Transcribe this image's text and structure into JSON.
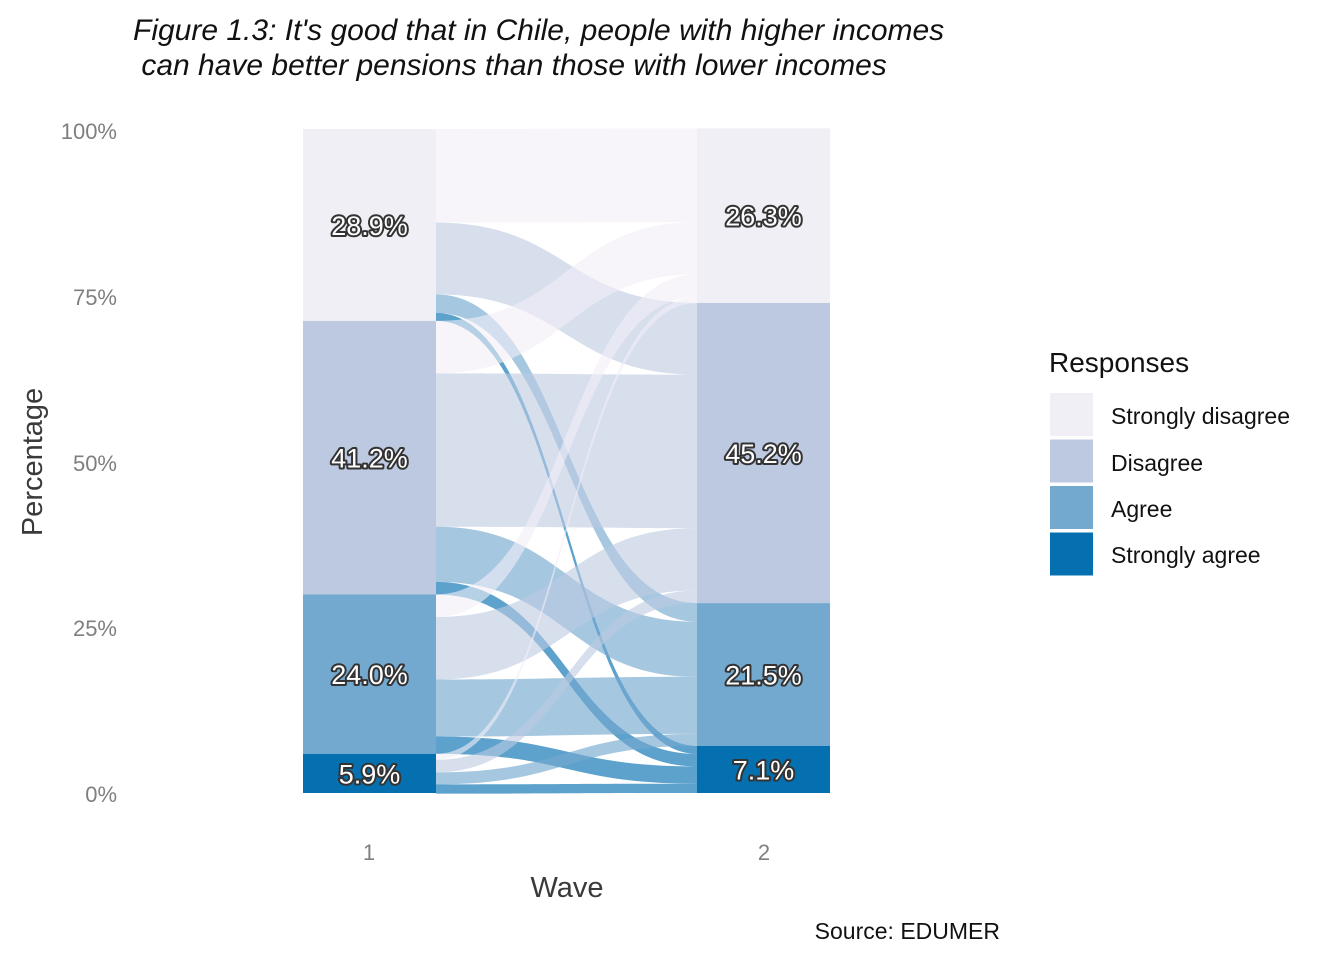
{
  "chart_data": {
    "type": "alluvial",
    "title_lines": [
      "Figure 1.3: It's good that in Chile, people with higher incomes",
      " can have better pensions than those with lower incomes"
    ],
    "xlabel": "Wave",
    "ylabel": "Percentage",
    "caption": "Source: EDUMER",
    "x_categories": [
      "1",
      "2"
    ],
    "y_ticks": [
      "0%",
      "25%",
      "50%",
      "75%",
      "100%"
    ],
    "ylim": [
      0,
      100
    ],
    "grid": false,
    "legend": {
      "title": "Responses",
      "position": "right",
      "items": [
        "Strongly disagree",
        "Disagree",
        "Agree",
        "Strongly agree"
      ]
    },
    "categories": [
      "Strongly disagree",
      "Disagree",
      "Agree",
      "Strongly agree"
    ],
    "colors": {
      "Strongly disagree": "#f1eff6",
      "Disagree": "#bdc9e1",
      "Agree": "#74a9cf",
      "Strongly agree": "#0570b0"
    },
    "waves": [
      {
        "wave": "1",
        "values": {
          "Strongly disagree": 28.9,
          "Disagree": 41.2,
          "Agree": 24.0,
          "Strongly agree": 5.9
        },
        "labels": {
          "Strongly disagree": "28.9%",
          "Disagree": "41.2%",
          "Agree": "24.0%",
          "Strongly agree": "5.9%"
        }
      },
      {
        "wave": "2",
        "values": {
          "Strongly disagree": 26.3,
          "Disagree": 45.2,
          "Agree": 21.5,
          "Strongly agree": 7.1
        },
        "labels": {
          "Strongly disagree": "26.3%",
          "Disagree": "45.2%",
          "Agree": "21.5%",
          "Strongly agree": "7.1%"
        }
      }
    ],
    "flows": [
      {
        "from": "Strongly disagree",
        "to": "Strongly disagree",
        "value": 14.1
      },
      {
        "from": "Strongly disagree",
        "to": "Disagree",
        "value": 10.8
      },
      {
        "from": "Strongly disagree",
        "to": "Agree",
        "value": 2.8
      },
      {
        "from": "Strongly disagree",
        "to": "Strongly agree",
        "value": 1.2
      },
      {
        "from": "Disagree",
        "to": "Strongly disagree",
        "value": 7.9
      },
      {
        "from": "Disagree",
        "to": "Disagree",
        "value": 23.1
      },
      {
        "from": "Disagree",
        "to": "Agree",
        "value": 8.3
      },
      {
        "from": "Disagree",
        "to": "Strongly agree",
        "value": 1.9
      },
      {
        "from": "Agree",
        "to": "Strongly disagree",
        "value": 3.4
      },
      {
        "from": "Agree",
        "to": "Disagree",
        "value": 9.4
      },
      {
        "from": "Agree",
        "to": "Agree",
        "value": 8.6
      },
      {
        "from": "Agree",
        "to": "Strongly agree",
        "value": 2.6
      },
      {
        "from": "Strongly agree",
        "to": "Strongly disagree",
        "value": 0.9
      },
      {
        "from": "Strongly agree",
        "to": "Disagree",
        "value": 1.9
      },
      {
        "from": "Strongly agree",
        "to": "Agree",
        "value": 1.8
      },
      {
        "from": "Strongly agree",
        "to": "Strongly agree",
        "value": 1.4
      }
    ]
  }
}
